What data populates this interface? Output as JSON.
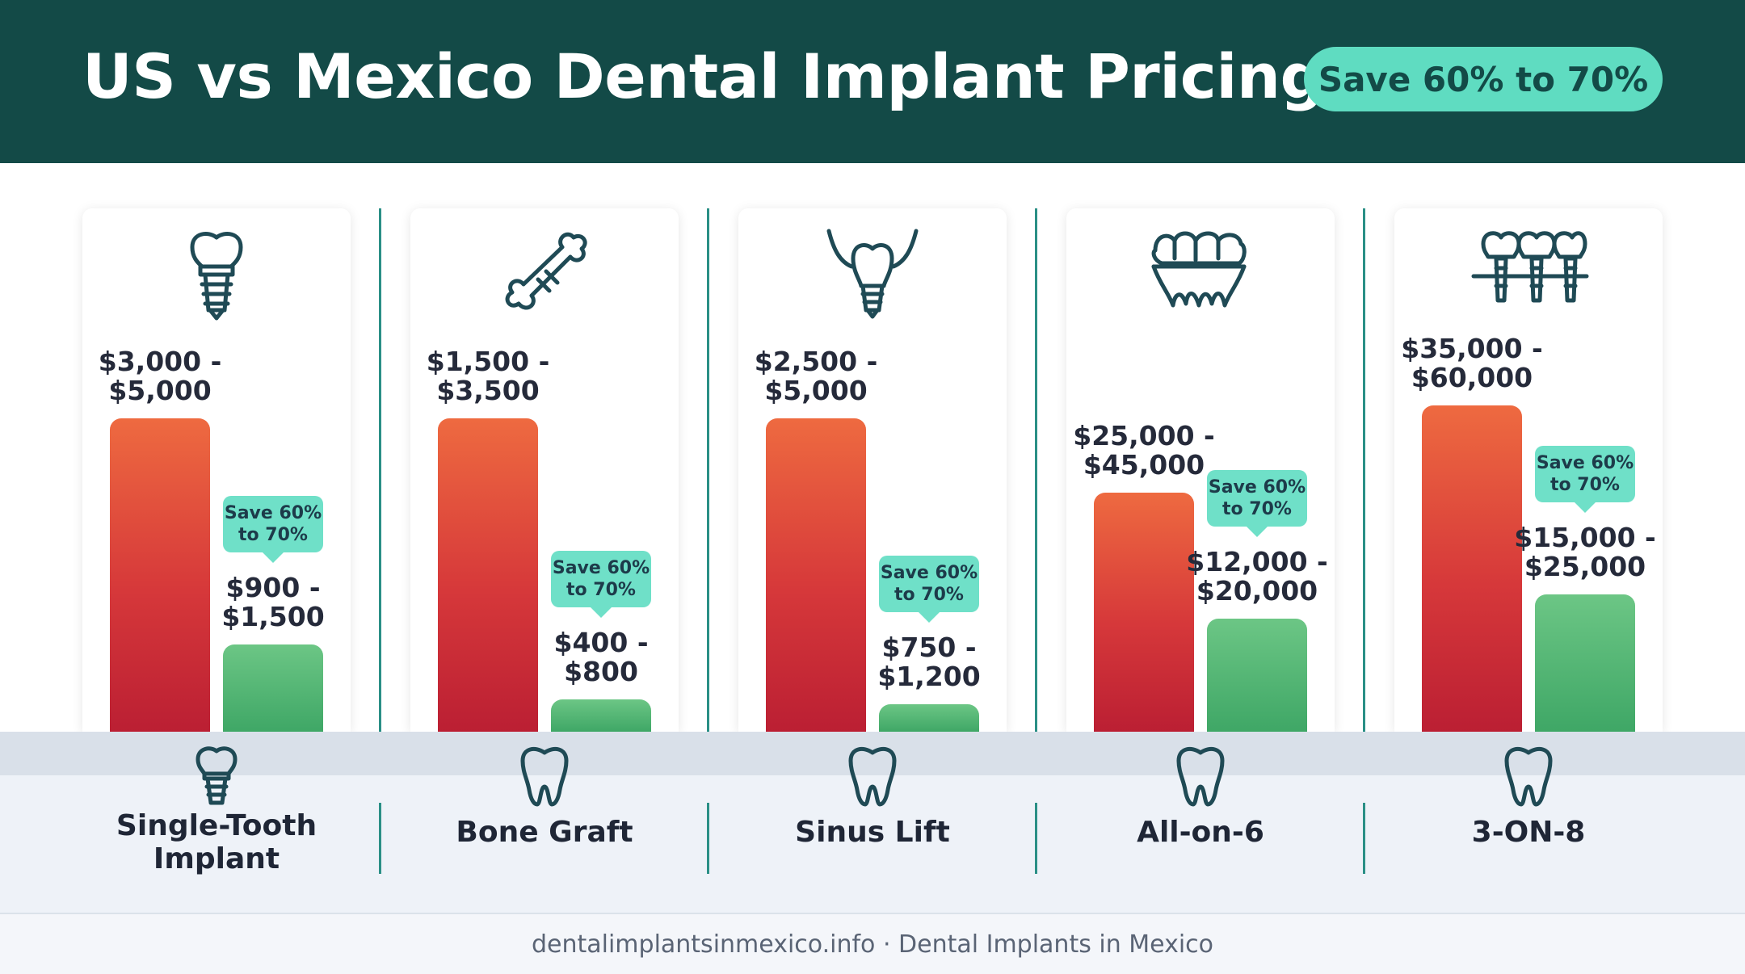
{
  "header": {
    "title": "US vs Mexico Dental Implant Pricing",
    "badge": "Save 60% to 70%"
  },
  "colors": {
    "header_bg": "#134a47",
    "badge_bg": "#5fdcc1",
    "us_bar": "#d6383a",
    "mexico_bar": "#4caf6e",
    "divider": "#2a8f86"
  },
  "chart_data": {
    "type": "bar",
    "categories": [
      "Single-Tooth Implant",
      "Bone Graft",
      "Sinus Lift",
      "All-on-6",
      "3-ON-8"
    ],
    "series": [
      {
        "name": "US",
        "low": [
          3000,
          1500,
          2500,
          25000,
          35000
        ],
        "high": [
          5000,
          3500,
          5000,
          45000,
          60000
        ]
      },
      {
        "name": "Mexico",
        "low": [
          900,
          400,
          750,
          12000,
          15000
        ],
        "high": [
          1500,
          800,
          1200,
          20000,
          25000
        ]
      }
    ],
    "savings_label": [
      "Save 60%",
      "to 70%"
    ]
  },
  "groups": [
    {
      "icon": "implant-icon",
      "bottom_icon": "implant-icon",
      "label": [
        "Single-Tooth",
        "Implant"
      ],
      "us_price": [
        "$3,000 -",
        "$5,000"
      ],
      "mx_price": [
        "$900 -",
        "$1,500"
      ],
      "tip": [
        "Save 60%",
        "to 70%"
      ]
    },
    {
      "icon": "bone-icon",
      "bottom_icon": "tooth-icon",
      "label": [
        "Bone Graft"
      ],
      "us_price": [
        "$1,500 -",
        "$3,500"
      ],
      "mx_price": [
        "$400 -",
        "$800"
      ],
      "tip": [
        "Save 60%",
        "to 70%"
      ]
    },
    {
      "icon": "sinus-implant-icon",
      "bottom_icon": "tooth-icon",
      "label": [
        "Sinus Lift"
      ],
      "us_price": [
        "$2,500 -",
        "$5,000"
      ],
      "mx_price": [
        "$750 -",
        "$1,200"
      ],
      "tip": [
        "Save 60%",
        "to 70%"
      ]
    },
    {
      "icon": "denture-icon",
      "bottom_icon": "tooth-icon",
      "label": [
        "All-on-6"
      ],
      "us_price": [
        "$25,000 -",
        "$45,000"
      ],
      "mx_price": [
        "$12,000 -",
        "$20,000"
      ],
      "tip": [
        "Save 60%",
        "to 70%"
      ]
    },
    {
      "icon": "implant-bridge-icon",
      "bottom_icon": "tooth-icon",
      "label": [
        "3-ON-8"
      ],
      "us_price": [
        "$35,000 -",
        "$60,000"
      ],
      "mx_price": [
        "$15,000 -",
        "$25,000"
      ],
      "tip": [
        "Save 60%",
        "to 70%"
      ]
    }
  ],
  "footer": {
    "text": "dentalimplantsinmexico.info · Dental Implants in Mexico"
  }
}
